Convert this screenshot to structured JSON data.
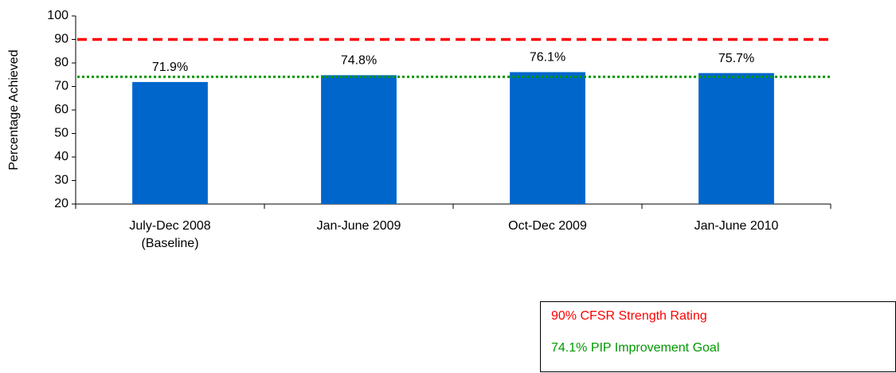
{
  "chart_data": {
    "type": "bar",
    "y_label": "Percentage Achieved",
    "categories": [
      "July-Dec 2008\n(Baseline)",
      "Jan-June 2009",
      "Oct-Dec 2009",
      "Jan-June 2010"
    ],
    "values": [
      71.9,
      74.8,
      76.1,
      75.7
    ],
    "value_labels": [
      "71.9%",
      "74.8%",
      "76.1%",
      "75.7%"
    ],
    "color": "#0066cc",
    "ylim": [
      20,
      100
    ],
    "yticks": [
      20,
      30,
      40,
      50,
      60,
      70,
      80,
      90,
      100
    ],
    "reference_lines": [
      {
        "name": "90% CFSR Strength Rating",
        "value": 90,
        "color": "#ff0000",
        "style": "dashed"
      },
      {
        "name": "74.1% PIP Improvement Goal",
        "value": 74.1,
        "color": "#009900",
        "style": "dotted"
      }
    ]
  }
}
